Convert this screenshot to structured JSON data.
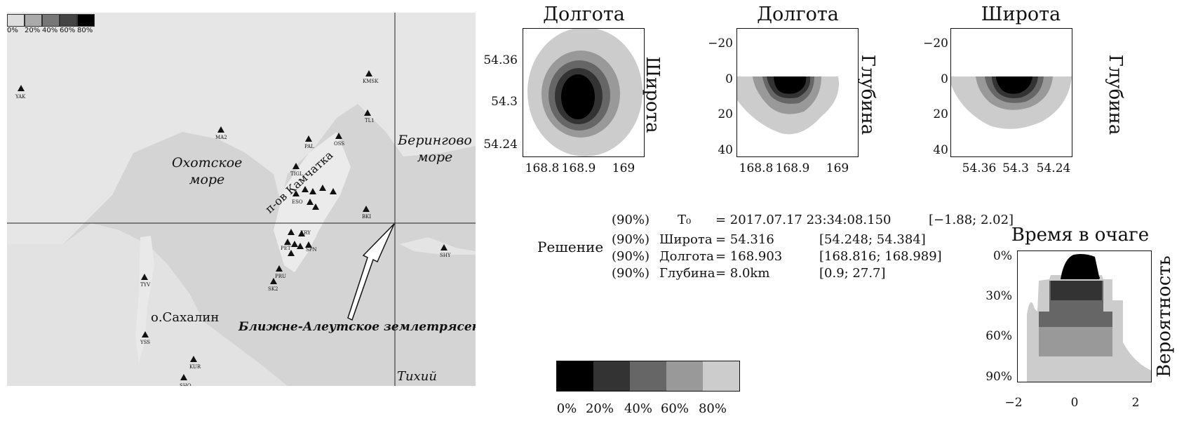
{
  "map": {
    "legend_ticks": [
      "0%",
      "20%",
      "40%",
      "60%",
      "80%"
    ],
    "sea_okhotsk": "Охотское море",
    "sea_bering": "Берингово море",
    "kamchatka": "п-ов Камчатка",
    "sakhalin": "о.Сахалин",
    "event_label": "Ближне-Алеутское землетрясение",
    "ocean": "Тихий океан",
    "stations": [
      "YAK",
      "MA2",
      "KMSK",
      "TL1",
      "PAL",
      "OSS",
      "TIGL",
      "BKI",
      "ESO",
      "KRY",
      "PET",
      "SPN",
      "PRU",
      "SK2",
      "TYV",
      "YSS",
      "KUR",
      "SHO",
      "SHY"
    ]
  },
  "panels": {
    "p1": {
      "top": "Долгота",
      "side": "Широта",
      "yticks": [
        "54.36",
        "54.3",
        "54.24"
      ],
      "xticks": [
        "168.8",
        "168.9",
        "169"
      ]
    },
    "p2": {
      "top": "Долгота",
      "side": "Глубина",
      "yticks": [
        "−20",
        "0",
        "20",
        "40"
      ],
      "xticks": [
        "168.8",
        "168.9",
        "169"
      ]
    },
    "p3": {
      "top": "Широта",
      "side": "Глубина",
      "yticks": [
        "−20",
        "0",
        "20",
        "40"
      ],
      "xticks": [
        "54.36",
        "54.3",
        "54.24"
      ]
    },
    "p4": {
      "top": "Время в очаге",
      "side": "Вероятность",
      "yticks": [
        "0%",
        "30%",
        "60%",
        "90%"
      ],
      "xticks": [
        "−2",
        "0",
        "2"
      ]
    }
  },
  "solution": {
    "label": "Решение",
    "rows": [
      {
        "conf": "(90%)",
        "name": "T₀",
        "eq": "= 2017.07.17  23:34:08.150",
        "range": "[−1.88; 2.02]"
      },
      {
        "conf": "(90%)",
        "name": "Широта",
        "eq": "= 54.316",
        "range": "[54.248; 54.384]"
      },
      {
        "conf": "(90%)",
        "name": "Долгота",
        "eq": "= 168.903",
        "range": "[168.816; 168.989]"
      },
      {
        "conf": "(90%)",
        "name": "Глубина",
        "eq": "= 8.0km",
        "range": "[0.9; 27.7]"
      }
    ]
  },
  "legend": {
    "ticks": [
      "0%",
      "20%",
      "40%",
      "60%",
      "80%"
    ],
    "colors": [
      "#000000",
      "#333333",
      "#666666",
      "#999999",
      "#cccccc"
    ]
  }
}
